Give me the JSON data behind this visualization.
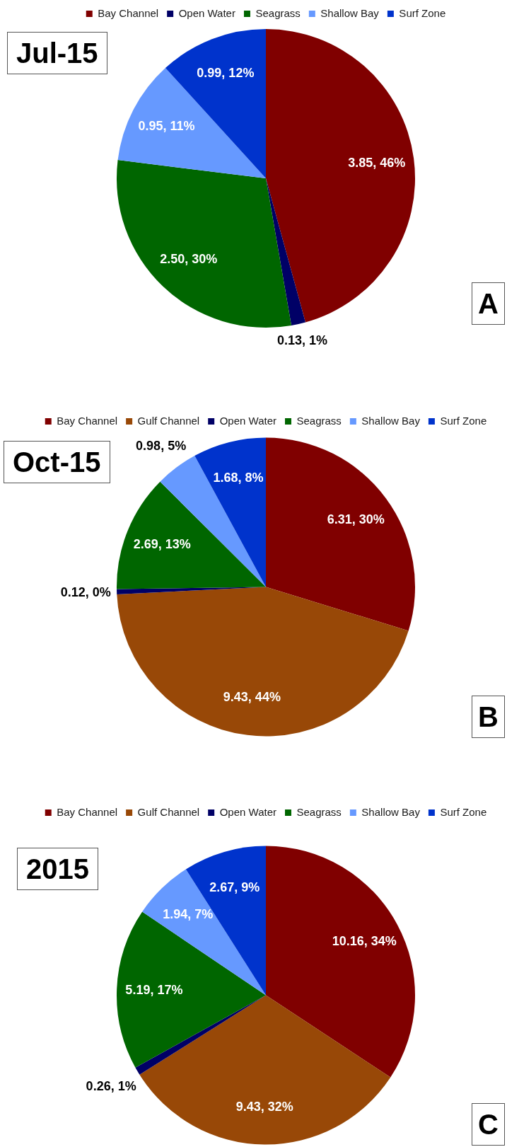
{
  "chart_data": [
    {
      "type": "pie",
      "title": "Jul-15",
      "categories": [
        "Bay Channel",
        "Open Water",
        "Seagrass",
        "Shallow Bay",
        "Surf Zone"
      ],
      "values": [
        3.85,
        0.13,
        2.5,
        0.95,
        0.99
      ],
      "colors": [
        "#800000",
        "#000066",
        "#006600",
        "#6699ff",
        "#0033cc"
      ],
      "value_labels": [
        "3.85, 46%",
        "0.13, 1%",
        "2.50, 30%",
        "0.95, 11%",
        "0.99, 12%"
      ],
      "legend": "top",
      "annotations": [
        "A"
      ]
    },
    {
      "type": "pie",
      "title": "Oct-15",
      "categories": [
        "Bay Channel",
        "Gulf Channel",
        "Open Water",
        "Seagrass",
        "Shallow Bay",
        "Surf Zone"
      ],
      "values": [
        6.31,
        9.43,
        0.12,
        2.69,
        0.98,
        1.68
      ],
      "colors": [
        "#800000",
        "#984807",
        "#000066",
        "#006600",
        "#6699ff",
        "#0033cc"
      ],
      "value_labels": [
        "6.31, 30%",
        "9.43, 44%",
        "0.12, 0%",
        "2.69, 13%",
        "0.98, 5%",
        "1.68, 8%"
      ],
      "legend": "top",
      "annotations": [
        "B"
      ]
    },
    {
      "type": "pie",
      "title": "2015",
      "categories": [
        "Bay Channel",
        "Gulf Channel",
        "Open Water",
        "Seagrass",
        "Shallow Bay",
        "Surf Zone"
      ],
      "values": [
        10.16,
        9.43,
        0.26,
        5.19,
        1.94,
        2.67
      ],
      "colors": [
        "#800000",
        "#984807",
        "#000066",
        "#006600",
        "#6699ff",
        "#0033cc"
      ],
      "value_labels": [
        "10.16, 34%",
        "9.43, 32%",
        "0.26, 1%",
        "5.19, 17%",
        "1.94, 7%",
        "2.67, 9%"
      ],
      "legend": "top",
      "annotations": [
        "C"
      ]
    }
  ]
}
